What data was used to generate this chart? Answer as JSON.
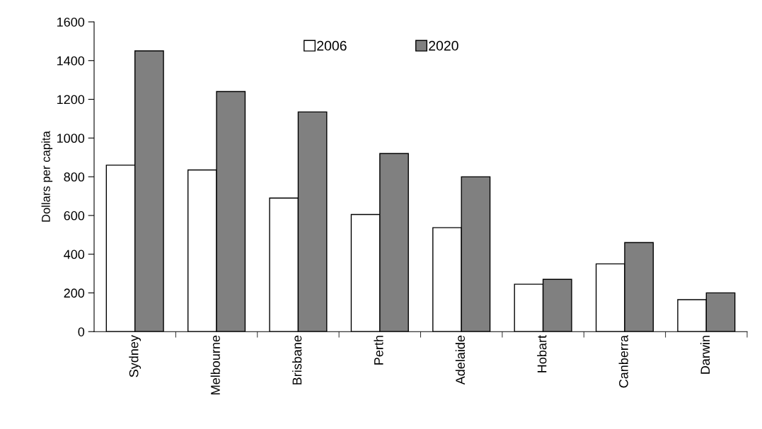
{
  "chart_data": {
    "type": "bar",
    "ylabel": "Dollars per capita",
    "categories": [
      "Sydney",
      "Melbourne",
      "Brisbane",
      "Perth",
      "Adelaide",
      "Hobart",
      "Canberra",
      "Darwin"
    ],
    "series": [
      {
        "name": "2006",
        "color": "#ffffff",
        "values": [
          860,
          835,
          690,
          605,
          537,
          245,
          350,
          165
        ]
      },
      {
        "name": "2020",
        "color": "#808080",
        "values": [
          1450,
          1240,
          1135,
          920,
          800,
          270,
          460,
          200
        ]
      }
    ],
    "ylim": [
      0,
      1600
    ],
    "yticks": [
      0,
      200,
      400,
      600,
      800,
      1000,
      1200,
      1400,
      1600
    ],
    "legend": "top",
    "grid": false
  }
}
